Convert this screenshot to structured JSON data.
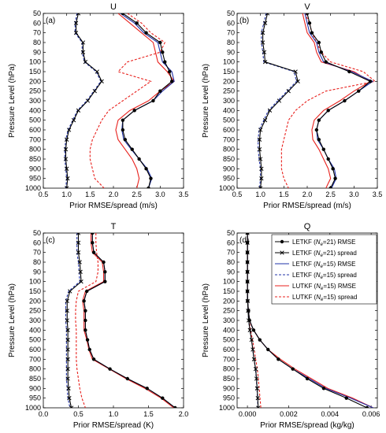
{
  "chart_data": [
    {
      "type": "line",
      "title": "U",
      "panel_label": "(a)",
      "xlabel": "Prior RMSE/spread (m/s)",
      "ylabel": "Pressure Level (hPa)",
      "xlim": [
        0.5,
        3.5
      ],
      "xticks": [
        0.5,
        1.0,
        1.5,
        2.0,
        2.5,
        3.0,
        3.5
      ],
      "xtick_labels": [
        "0.5",
        "1.0",
        "1.5",
        "2.0",
        "2.5",
        "3.0",
        "3.5"
      ],
      "levels": [
        50,
        60,
        70,
        80,
        90,
        100,
        150,
        200,
        250,
        300,
        400,
        500,
        600,
        700,
        800,
        850,
        900,
        950,
        1000
      ],
      "series": [
        {
          "key": "letkf21_rmse",
          "values": [
            2.2,
            2.5,
            2.7,
            3.0,
            3.05,
            3.1,
            3.2,
            3.25,
            3.0,
            2.85,
            2.45,
            2.2,
            2.2,
            2.25,
            2.4,
            2.55,
            2.7,
            2.8,
            2.75
          ]
        },
        {
          "key": "letkf21_spread",
          "values": [
            1.25,
            1.2,
            1.2,
            1.35,
            1.35,
            1.4,
            1.65,
            1.75,
            1.6,
            1.45,
            1.25,
            1.15,
            1.05,
            1.0,
            0.98,
            0.98,
            1.0,
            1.02,
            1.0
          ]
        },
        {
          "key": "letkf15_rmse",
          "values": [
            2.15,
            2.45,
            2.65,
            2.95,
            3.0,
            3.05,
            3.25,
            3.3,
            3.05,
            2.85,
            2.45,
            2.2,
            2.18,
            2.22,
            2.38,
            2.55,
            2.72,
            2.82,
            2.75
          ]
        },
        {
          "key": "letkf15_spread",
          "values": [
            1.22,
            1.18,
            1.18,
            1.33,
            1.33,
            1.38,
            1.63,
            1.73,
            1.58,
            1.43,
            1.23,
            1.13,
            1.03,
            0.98,
            0.96,
            0.96,
            0.98,
            1.0,
            0.98
          ]
        },
        {
          "key": "lutkf15_rmse",
          "values": [
            2.1,
            2.35,
            2.6,
            2.85,
            2.9,
            2.95,
            3.15,
            3.3,
            3.0,
            2.75,
            2.35,
            2.1,
            2.05,
            2.1,
            2.25,
            2.4,
            2.5,
            2.55,
            2.5
          ]
        },
        {
          "key": "lutkf15_spread",
          "values": [
            2.3,
            2.6,
            2.8,
            3.1,
            3.0,
            2.3,
            2.1,
            2.8,
            2.5,
            2.2,
            1.9,
            1.75,
            1.65,
            1.55,
            1.5,
            1.5,
            1.55,
            1.6,
            1.8
          ]
        }
      ]
    },
    {
      "type": "line",
      "title": "V",
      "panel_label": "(b)",
      "xlabel": "Prior RMSE/spread (m/s)",
      "ylabel": "Pressure Level (hPa)",
      "xlim": [
        0.5,
        3.5
      ],
      "xticks": [
        0.5,
        1.0,
        1.5,
        2.0,
        2.5,
        3.0,
        3.5
      ],
      "xtick_labels": [
        "0.5",
        "1.0",
        "1.5",
        "2.0",
        "2.5",
        "3.0",
        "3.5"
      ],
      "levels": [
        50,
        60,
        70,
        80,
        90,
        100,
        150,
        200,
        250,
        300,
        400,
        500,
        600,
        700,
        800,
        850,
        900,
        950,
        1000
      ],
      "series": [
        {
          "key": "letkf21_rmse",
          "values": [
            2.0,
            2.05,
            2.1,
            2.25,
            2.3,
            2.4,
            2.9,
            3.35,
            3.1,
            2.8,
            2.45,
            2.25,
            2.2,
            2.25,
            2.35,
            2.45,
            2.55,
            2.6,
            2.5
          ]
        },
        {
          "key": "letkf21_spread",
          "values": [
            1.15,
            1.1,
            1.05,
            1.05,
            1.08,
            1.1,
            1.75,
            1.8,
            1.6,
            1.4,
            1.2,
            1.1,
            1.0,
            0.98,
            0.98,
            1.0,
            1.02,
            1.02,
            1.0
          ]
        },
        {
          "key": "letkf15_rmse",
          "values": [
            1.95,
            2.0,
            2.05,
            2.2,
            2.25,
            2.35,
            2.95,
            3.4,
            3.1,
            2.8,
            2.45,
            2.25,
            2.2,
            2.22,
            2.35,
            2.45,
            2.58,
            2.62,
            2.52
          ]
        },
        {
          "key": "letkf15_spread",
          "values": [
            1.12,
            1.07,
            1.02,
            1.02,
            1.05,
            1.07,
            1.72,
            1.77,
            1.57,
            1.37,
            1.17,
            1.07,
            0.97,
            0.95,
            0.95,
            0.97,
            1.0,
            1.0,
            0.98
          ]
        },
        {
          "key": "lutkf15_rmse",
          "values": [
            1.9,
            1.95,
            2.0,
            2.15,
            2.2,
            2.3,
            3.0,
            3.35,
            3.0,
            2.7,
            2.35,
            2.15,
            2.1,
            2.12,
            2.25,
            2.35,
            2.45,
            2.5,
            2.4
          ]
        },
        {
          "key": "lutkf15_spread",
          "values": [
            1.95,
            2.05,
            2.1,
            2.2,
            2.3,
            2.5,
            3.2,
            3.45,
            2.4,
            2.0,
            1.75,
            1.6,
            1.55,
            1.5,
            1.45,
            1.45,
            1.45,
            1.5,
            1.6
          ]
        }
      ]
    },
    {
      "type": "line",
      "title": "T",
      "panel_label": "(c)",
      "xlabel": "Prior RMSE/spread (K)",
      "ylabel": "Pressure Level (hPa)",
      "xlim": [
        0.0,
        2.0
      ],
      "xticks": [
        0.0,
        0.5,
        1.0,
        1.5,
        2.0
      ],
      "xtick_labels": [
        "0.0",
        "0.5",
        "1.0",
        "1.5",
        "2.0"
      ],
      "levels": [
        50,
        60,
        70,
        80,
        90,
        100,
        150,
        200,
        250,
        300,
        400,
        500,
        600,
        700,
        800,
        850,
        900,
        950,
        1000
      ],
      "series": [
        {
          "key": "letkf21_rmse",
          "values": [
            0.7,
            0.7,
            0.72,
            0.86,
            0.88,
            0.88,
            0.62,
            0.58,
            0.6,
            0.6,
            0.6,
            0.63,
            0.66,
            0.72,
            0.95,
            1.2,
            1.48,
            1.7,
            1.88
          ]
        },
        {
          "key": "letkf21_spread",
          "values": [
            0.5,
            0.5,
            0.5,
            0.52,
            0.53,
            0.54,
            0.38,
            0.34,
            0.34,
            0.34,
            0.35,
            0.35,
            0.35,
            0.35,
            0.35,
            0.35,
            0.36,
            0.37,
            0.4
          ]
        },
        {
          "key": "letkf15_rmse",
          "values": [
            0.7,
            0.7,
            0.72,
            0.86,
            0.88,
            0.88,
            0.62,
            0.58,
            0.6,
            0.6,
            0.6,
            0.63,
            0.66,
            0.72,
            0.95,
            1.2,
            1.48,
            1.7,
            1.88
          ]
        },
        {
          "key": "letkf15_spread",
          "values": [
            0.48,
            0.48,
            0.48,
            0.5,
            0.51,
            0.52,
            0.36,
            0.32,
            0.32,
            0.32,
            0.33,
            0.33,
            0.33,
            0.33,
            0.33,
            0.33,
            0.34,
            0.35,
            0.38
          ]
        },
        {
          "key": "lutkf15_rmse",
          "values": [
            0.68,
            0.68,
            0.7,
            0.84,
            0.86,
            0.86,
            0.6,
            0.56,
            0.58,
            0.58,
            0.58,
            0.62,
            0.65,
            0.7,
            0.94,
            1.18,
            1.45,
            1.68,
            1.86
          ]
        },
        {
          "key": "lutkf15_spread",
          "values": [
            0.75,
            0.75,
            0.76,
            0.78,
            0.78,
            0.75,
            0.5,
            0.47,
            0.46,
            0.46,
            0.47,
            0.47,
            0.47,
            0.47,
            0.48,
            0.5,
            0.52,
            0.55,
            0.6
          ]
        }
      ]
    },
    {
      "type": "line",
      "title": "Q",
      "panel_label": "(d)",
      "xlabel": "Prior RMSE/spread (kg/kg)",
      "ylabel": "Pressure Level (hPa)",
      "xlim": [
        -0.0005,
        0.0063
      ],
      "xticks": [
        0.0,
        0.002,
        0.004,
        0.006
      ],
      "xtick_labels": [
        "0.000",
        "0.002",
        "0.004",
        "0.006"
      ],
      "levels": [
        50,
        60,
        70,
        80,
        90,
        100,
        150,
        200,
        250,
        300,
        400,
        500,
        600,
        700,
        800,
        850,
        900,
        950,
        1000
      ],
      "series": [
        {
          "key": "letkf21_rmse",
          "values": [
            0.0,
            0.0,
            0.0,
            0.0,
            0.0,
            0.0,
            0.0,
            1e-05,
            5e-05,
            0.0001,
            0.0003,
            0.0006,
            0.001,
            0.0015,
            0.0022,
            0.0029,
            0.0037,
            0.0048,
            0.0058
          ]
        },
        {
          "key": "letkf21_spread",
          "values": [
            0.0,
            0.0,
            0.0,
            0.0,
            0.0,
            0.0,
            0.0,
            1e-05,
            3e-05,
            6e-05,
            0.00012,
            0.0002,
            0.00026,
            0.00032,
            0.0004,
            0.00044,
            0.00047,
            0.0005,
            0.00052
          ]
        },
        {
          "key": "letkf15_rmse",
          "values": [
            0.0,
            0.0,
            0.0,
            0.0,
            0.0,
            0.0,
            0.0,
            1e-05,
            5e-05,
            0.0001,
            0.0003,
            0.0006,
            0.001,
            0.0015,
            0.0022,
            0.003,
            0.0038,
            0.005,
            0.0061
          ]
        },
        {
          "key": "letkf15_spread",
          "values": [
            0.0,
            0.0,
            0.0,
            0.0,
            0.0,
            0.0,
            0.0,
            1e-05,
            3e-05,
            6e-05,
            0.00012,
            0.0002,
            0.00026,
            0.00032,
            0.00039,
            0.00043,
            0.00046,
            0.00049,
            0.00051
          ]
        },
        {
          "key": "lutkf15_rmse",
          "values": [
            0.0,
            0.0,
            0.0,
            0.0,
            0.0,
            0.0,
            0.0,
            1e-05,
            5e-05,
            0.0001,
            0.0003,
            0.0006,
            0.001,
            0.0016,
            0.0023,
            0.0031,
            0.0039,
            0.0051,
            0.0061
          ]
        },
        {
          "key": "lutkf15_spread",
          "values": [
            0.0,
            0.0,
            0.0,
            0.0,
            0.0,
            0.0,
            0.0,
            1e-05,
            4e-05,
            8e-05,
            0.00015,
            0.00025,
            0.00033,
            0.0004,
            0.00048,
            0.00053,
            0.00057,
            0.00061,
            0.00065
          ]
        }
      ]
    }
  ],
  "legend": {
    "placement": "top-right of panel (d)",
    "items": [
      {
        "key": "letkf21_rmse",
        "pre": "LETKF (",
        "sym": "N",
        "sub": "e",
        "post": "=21) RMSE",
        "color": "#000000",
        "dash": "solid",
        "marker": "circle"
      },
      {
        "key": "letkf21_spread",
        "pre": "LETKF (",
        "sym": "N",
        "sub": "e",
        "post": "=21) spread",
        "color": "#000000",
        "dash": "solid",
        "marker": "x"
      },
      {
        "key": "letkf15_rmse",
        "pre": "LETKF (",
        "sym": "N",
        "sub": "e",
        "post": "=15) RMSE",
        "color": "#2233aa",
        "dash": "solid",
        "marker": "none"
      },
      {
        "key": "letkf15_spread",
        "pre": "LETKF (",
        "sym": "N",
        "sub": "e",
        "post": "=15) spread",
        "color": "#2233aa",
        "dash": "dashed",
        "marker": "none"
      },
      {
        "key": "lutkf15_rmse",
        "pre": "LUTKF (",
        "sym": "N",
        "sub": "e",
        "post": "=15) RMSE",
        "color": "#e8211d",
        "dash": "solid",
        "marker": "none"
      },
      {
        "key": "lutkf15_spread",
        "pre": "LUTKF (",
        "sym": "N",
        "sub": "e",
        "post": "=15) spread",
        "color": "#e8211d",
        "dash": "dashed",
        "marker": "none"
      }
    ]
  }
}
